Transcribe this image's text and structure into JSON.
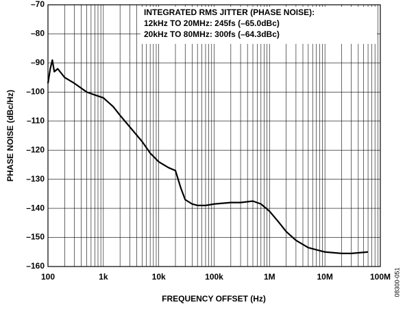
{
  "chart_data": {
    "type": "line",
    "x_label": "FREQUENCY OFFSET (Hz)",
    "y_label": "PHASE NOISE (dBc/Hz)",
    "annotations": [
      "INTEGRATED RMS JITTER (PHASE NOISE):",
      "12kHz TO 20MHz: 245fs (–65.0dBc)",
      "20kHz TO 80MHz: 300fs (–64.3dBc)"
    ],
    "figure_code": "08300-051",
    "xscale": "log",
    "grid": true,
    "xlim": [
      100,
      100000000
    ],
    "xticks": [
      100,
      {
        "value": 1000,
        "label": "1k"
      },
      {
        "value": 10000,
        "label": "10k"
      },
      {
        "value": 100000,
        "label": "100k"
      },
      {
        "value": 1000000,
        "label": "1M"
      },
      {
        "value": 10000000,
        "label": "10M"
      },
      {
        "value": 100000000,
        "label": "100M"
      }
    ],
    "xminorticks": [
      200,
      300,
      400,
      500,
      600,
      700,
      800,
      900,
      2000,
      3000,
      4000,
      5000,
      6000,
      7000,
      8000,
      9000,
      20000,
      30000,
      40000,
      50000,
      60000,
      70000,
      80000,
      90000,
      200000,
      300000,
      400000,
      500000,
      600000,
      700000,
      800000,
      900000,
      2000000,
      3000000,
      4000000,
      5000000,
      6000000,
      7000000,
      8000000,
      9000000,
      20000000,
      30000000,
      40000000,
      50000000,
      60000000,
      70000000,
      80000000,
      90000000
    ],
    "ylim": [
      -160,
      -70
    ],
    "yticks": [
      {
        "value": -160,
        "label": "–160"
      },
      {
        "value": -150,
        "label": "–150"
      },
      {
        "value": -140,
        "label": "–140"
      },
      {
        "value": -130,
        "label": "–130"
      },
      {
        "value": -120,
        "label": "–120"
      },
      {
        "value": -110,
        "label": "–110"
      },
      {
        "value": -100,
        "label": "–100"
      },
      {
        "value": -90,
        "label": "–90"
      },
      {
        "value": -80,
        "label": "–80"
      },
      {
        "value": -70,
        "label": "–70"
      }
    ],
    "series": [
      {
        "color": "#000000",
        "x": [
          100,
          110,
          120,
          130,
          150,
          200,
          300,
          500,
          700,
          1000,
          1500,
          2000,
          3000,
          5000,
          7000,
          10000,
          15000,
          20000,
          25000,
          30000,
          40000,
          50000,
          70000,
          100000,
          200000,
          300000,
          500000,
          700000,
          1000000,
          1500000,
          2000000,
          3000000,
          5000000,
          10000000,
          20000000,
          30000000,
          60000000
        ],
        "values": [
          -97,
          -92,
          -89,
          -93,
          -92,
          -95,
          -97,
          -100,
          -101,
          -102,
          -105,
          -108,
          -112,
          -117,
          -121,
          -124,
          -126,
          -127,
          -133,
          -137,
          -138.5,
          -139,
          -139,
          -138.5,
          -138,
          -138,
          -137.5,
          -138.5,
          -141,
          -145,
          -148,
          -151,
          -153.5,
          -155,
          -155.5,
          -155.5,
          -155
        ]
      }
    ]
  }
}
